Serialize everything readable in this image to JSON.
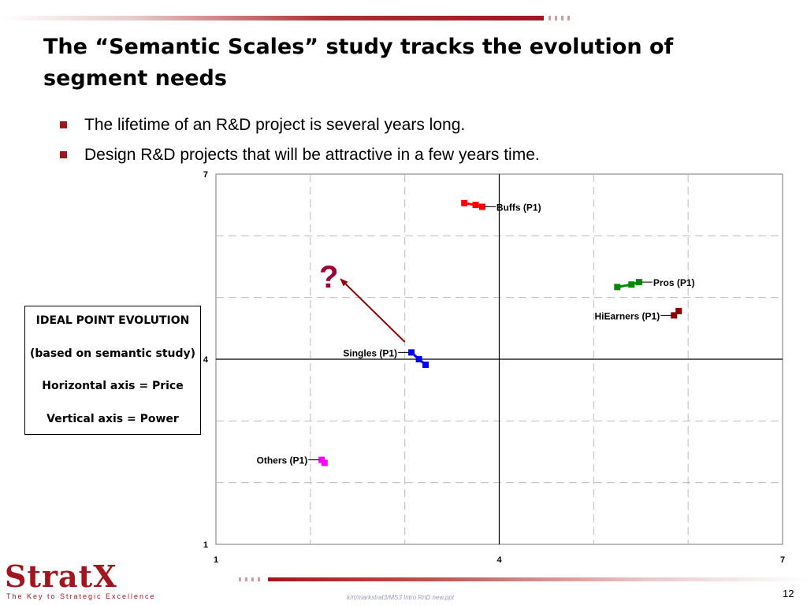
{
  "slide": {
    "title": "The “Semantic Scales” study tracks the evolution of segment needs",
    "bullets": [
      "The lifetime of an R&D project is several years long.",
      "Design R&D projects that will be attractive in a few years time."
    ],
    "page_number": "12",
    "footer_path": "k/rt/markstrat3/MS3 Intro RnD new.ppt",
    "logo_text": "StratX",
    "tagline": "The Key to Strategic Excellence",
    "question_mark": "?"
  },
  "legend_box": {
    "lines": [
      "IDEAL POINT EVOLUTION",
      "(based on semantic study)",
      "Horizontal axis = Price",
      "Vertical axis = Power"
    ]
  },
  "colors": {
    "brand": "#a0161e",
    "buffs": "#ff0000",
    "pros": "#008800",
    "hiearners": "#8b0000",
    "singles": "#0000ff",
    "others": "#ff00ff",
    "arrow": "#8b0000",
    "question": "#990033"
  },
  "chart_data": {
    "type": "scatter",
    "title": "",
    "xlabel": "Price",
    "ylabel": "Power",
    "xlim": [
      1,
      7
    ],
    "ylim": [
      1,
      7
    ],
    "x_tick_labels": [
      "1",
      "4",
      "7"
    ],
    "y_tick_labels": [
      "1",
      "4",
      "7"
    ],
    "grid": true,
    "series": [
      {
        "name": "Buffs (P1)",
        "color_key": "buffs",
        "label_side": "right",
        "points": [
          [
            3.63,
            6.53
          ],
          [
            3.75,
            6.5
          ],
          [
            3.82,
            6.47
          ]
        ]
      },
      {
        "name": "Pros (P1)",
        "color_key": "pros",
        "label_side": "right",
        "points": [
          [
            5.25,
            5.17
          ],
          [
            5.4,
            5.21
          ],
          [
            5.48,
            5.25
          ]
        ]
      },
      {
        "name": "HiEarners (P1)",
        "color_key": "hiearners",
        "label_side": "left",
        "points": [
          [
            5.85,
            4.71
          ],
          [
            5.9,
            4.78
          ]
        ]
      },
      {
        "name": "Singles (P1)",
        "color_key": "singles",
        "label_side": "left",
        "points": [
          [
            3.07,
            4.11
          ],
          [
            3.15,
            4.0
          ],
          [
            3.22,
            3.91
          ]
        ]
      },
      {
        "name": "Others (P1)",
        "color_key": "others",
        "label_side": "left",
        "points": [
          [
            2.12,
            2.37
          ],
          [
            2.15,
            2.32
          ]
        ]
      }
    ],
    "annotation": {
      "type": "arrow",
      "from": [
        3.0,
        4.28
      ],
      "to": [
        2.32,
        5.3
      ]
    }
  }
}
